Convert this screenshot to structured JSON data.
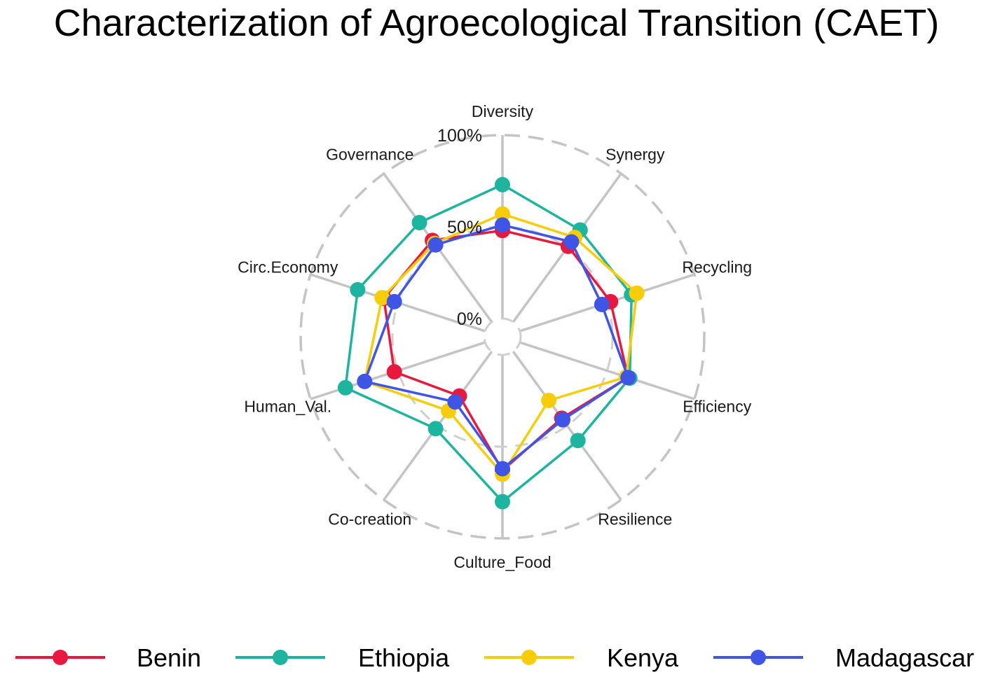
{
  "chart_data": {
    "type": "radar",
    "title": "Characterization of Agroecological Transition (CAET)",
    "axes": [
      "Diversity",
      "Synergy",
      "Recycling",
      "Efficiency",
      "Resilience",
      "Culture_Food",
      "Co-creation",
      "Human_Val.",
      "Circ.Economy",
      "Governance"
    ],
    "ticks": [
      "0%",
      "50%",
      "100%"
    ],
    "range": [
      0,
      100
    ],
    "legend_position": "bottom",
    "series": [
      {
        "name": "Benin",
        "color": "#E8193F",
        "values": [
          48,
          51,
          52,
          62,
          45,
          63,
          30,
          52,
          58,
          55
        ]
      },
      {
        "name": "Ethiopia",
        "color": "#1DB5A0",
        "values": [
          73,
          62,
          64,
          63,
          60,
          80,
          52,
          80,
          73,
          67
        ]
      },
      {
        "name": "Kenya",
        "color": "#F7CD0A",
        "values": [
          57,
          57,
          67,
          61,
          33,
          65,
          40,
          69,
          59,
          53
        ]
      },
      {
        "name": "Madagascar",
        "color": "#3F55E5",
        "values": [
          51,
          54,
          47,
          62,
          46,
          62,
          34,
          69,
          52,
          52
        ]
      }
    ]
  }
}
